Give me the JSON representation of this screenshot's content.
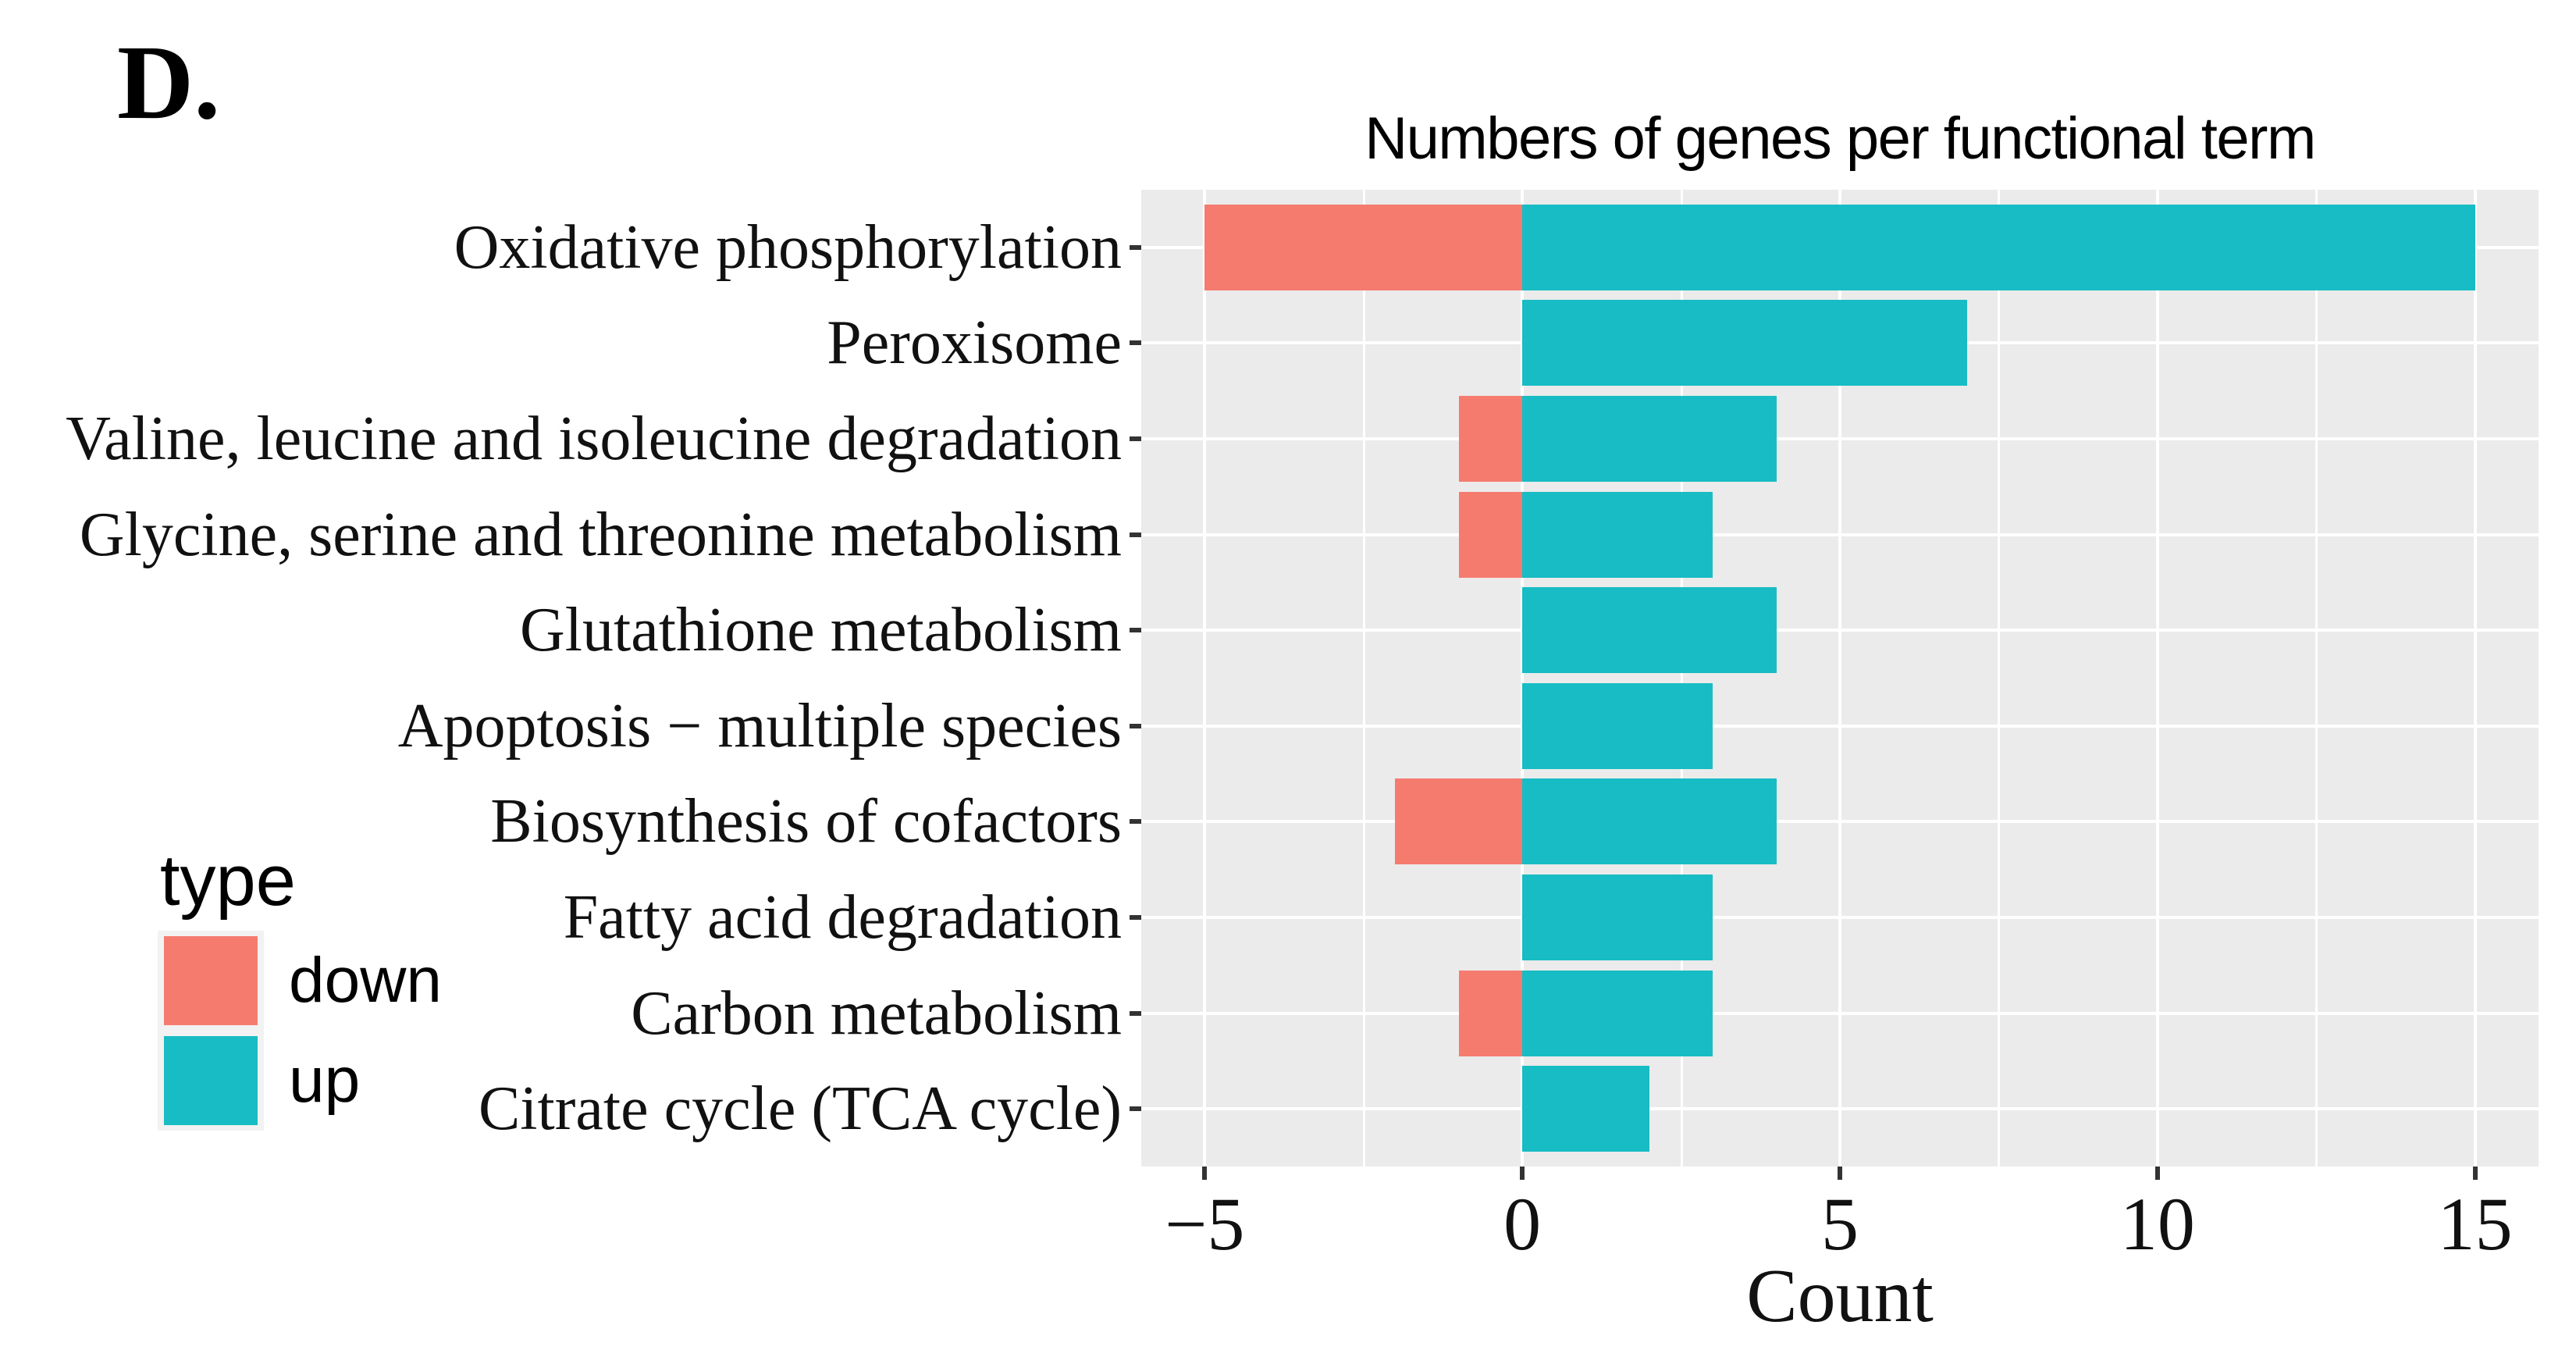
{
  "panel_label": "D.",
  "chart_data": {
    "type": "bar",
    "orientation": "horizontal",
    "title": "Numbers of genes per functional term",
    "xlabel": "Count",
    "ylabel": "",
    "categories": [
      "Oxidative phosphorylation",
      "Peroxisome",
      "Valine, leucine and isoleucine degradation",
      "Glycine, serine and threonine metabolism",
      "Glutathione metabolism",
      "Apoptosis − multiple species",
      "Biosynthesis of cofactors",
      "Fatty acid degradation",
      "Carbon metabolism",
      "Citrate cycle (TCA cycle)"
    ],
    "series": [
      {
        "name": "down",
        "color": "#F67B6F",
        "values": [
          -5,
          0,
          -1,
          -1,
          0,
          0,
          -2,
          0,
          -1,
          0
        ]
      },
      {
        "name": "up",
        "color": "#18BCC4",
        "values": [
          15,
          7,
          4,
          3,
          4,
          3,
          4,
          3,
          3,
          2
        ]
      }
    ],
    "xlim": [
      -6,
      16
    ],
    "x_ticks": [
      -5,
      0,
      5,
      10,
      15
    ],
    "x_minor_ticks": [
      -2.5,
      2.5,
      7.5,
      12.5
    ],
    "legend_title": "type",
    "legend_position": "left",
    "grid": true,
    "panel_bg": "#EBEBEB",
    "grid_color": "#FFFFFF",
    "tick_color": "#333333",
    "text_color": "#111111"
  }
}
